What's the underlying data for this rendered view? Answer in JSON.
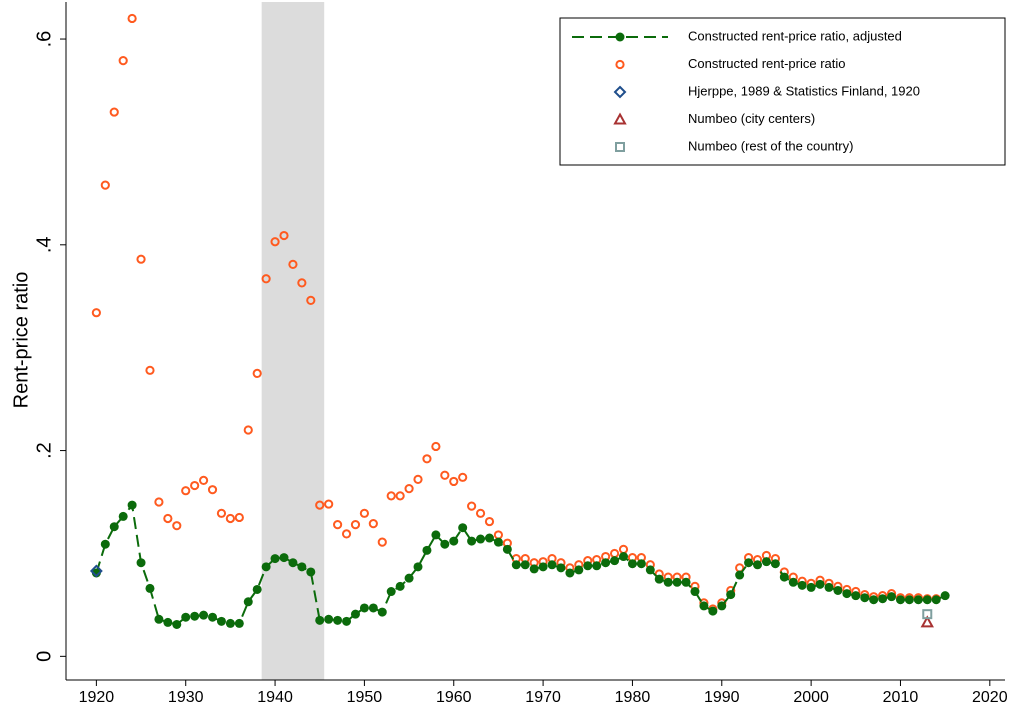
{
  "chart_data": {
    "type": "scatter",
    "y_label": "Rent-price ratio",
    "x": [
      1920,
      1921,
      1922,
      1923,
      1924,
      1925,
      1926,
      1927,
      1928,
      1929,
      1930,
      1931,
      1932,
      1933,
      1934,
      1935,
      1936,
      1937,
      1938,
      1939,
      1940,
      1941,
      1942,
      1943,
      1944,
      1945,
      1946,
      1947,
      1948,
      1949,
      1950,
      1951,
      1952,
      1953,
      1954,
      1955,
      1956,
      1957,
      1958,
      1959,
      1960,
      1961,
      1962,
      1963,
      1964,
      1965,
      1966,
      1967,
      1968,
      1969,
      1970,
      1971,
      1972,
      1973,
      1974,
      1975,
      1976,
      1977,
      1978,
      1979,
      1980,
      1981,
      1982,
      1983,
      1984,
      1985,
      1986,
      1987,
      1988,
      1989,
      1990,
      1991,
      1992,
      1993,
      1994,
      1995,
      1996,
      1997,
      1998,
      1999,
      2000,
      2001,
      2002,
      2003,
      2004,
      2005,
      2006,
      2007,
      2008,
      2009,
      2010,
      2011,
      2012,
      2013,
      2014,
      2015
    ],
    "xlim": [
      1916.6,
      2021.7
    ],
    "xticks": [
      1920,
      1930,
      1940,
      1950,
      1960,
      1970,
      1980,
      1990,
      2000,
      2010,
      2020
    ],
    "ylim": [
      -0.023,
      0.636
    ],
    "yticks": [
      {
        "value": 0,
        "label": "0"
      },
      {
        "value": 0.2,
        "label": ".2"
      },
      {
        "value": 0.4,
        "label": ".4"
      },
      {
        "value": 0.6,
        "label": ".6"
      }
    ],
    "shaded_range": [
      1938.5,
      1945.5
    ],
    "shade_color": "#dcdcdc",
    "legend": "top-right",
    "series": [
      {
        "name": "Constructed rent-price ratio, adjusted",
        "color": "#0b6b0b",
        "marker": "filled-circle",
        "line": "dashed",
        "values": [
          0.081,
          0.109,
          0.126,
          0.136,
          0.147,
          0.091,
          0.066,
          0.036,
          0.033,
          0.031,
          0.038,
          0.039,
          0.04,
          0.038,
          0.034,
          0.032,
          0.032,
          0.053,
          0.065,
          0.087,
          0.095,
          0.096,
          0.091,
          0.087,
          0.082,
          0.035,
          0.036,
          0.035,
          0.034,
          0.041,
          0.047,
          0.047,
          0.043,
          0.063,
          0.068,
          0.076,
          0.087,
          0.103,
          0.118,
          0.109,
          0.112,
          0.125,
          0.112,
          0.114,
          0.115,
          0.111,
          0.104,
          0.089,
          0.089,
          0.085,
          0.087,
          0.089,
          0.086,
          0.081,
          0.084,
          0.088,
          0.088,
          0.091,
          0.093,
          0.097,
          0.09,
          0.09,
          0.084,
          0.075,
          0.072,
          0.072,
          0.072,
          0.063,
          0.049,
          0.044,
          0.049,
          0.06,
          0.079,
          0.091,
          0.089,
          0.092,
          0.09,
          0.077,
          0.072,
          0.069,
          0.067,
          0.07,
          0.067,
          0.064,
          0.061,
          0.059,
          0.057,
          0.055,
          0.056,
          0.058,
          0.055,
          0.055,
          0.055,
          0.055,
          0.055,
          0.059
        ]
      },
      {
        "name": "Constructed rent-price ratio",
        "color": "#ff5a1f",
        "marker": "hollow-circle",
        "values": [
          0.334,
          0.458,
          0.529,
          0.579,
          0.62,
          0.386,
          0.278,
          0.15,
          0.134,
          0.127,
          0.161,
          0.166,
          0.171,
          0.162,
          0.139,
          0.134,
          0.135,
          0.22,
          0.275,
          0.367,
          0.403,
          0.409,
          0.381,
          0.363,
          0.346,
          0.147,
          0.148,
          0.128,
          0.119,
          0.128,
          0.139,
          0.129,
          0.111,
          0.156,
          0.156,
          0.163,
          0.172,
          0.192,
          0.204,
          0.176,
          0.17,
          0.174,
          0.146,
          0.139,
          0.131,
          0.118,
          0.11,
          0.095,
          0.095,
          0.091,
          0.092,
          0.095,
          0.091,
          0.086,
          0.089,
          0.093,
          0.094,
          0.097,
          0.1,
          0.104,
          0.096,
          0.096,
          0.089,
          0.08,
          0.077,
          0.077,
          0.077,
          0.068,
          0.052,
          0.046,
          0.052,
          0.064,
          0.086,
          0.096,
          0.094,
          0.098,
          0.095,
          0.082,
          0.077,
          0.073,
          0.071,
          0.074,
          0.071,
          0.068,
          0.065,
          0.063,
          0.06,
          0.058,
          0.059,
          0.061,
          0.057,
          0.057,
          0.057,
          0.056,
          0.056,
          null
        ]
      },
      {
        "name": "Hjerppe, 1989 & Statistics Finland, 1920",
        "color": "#1f4e8c",
        "marker": "hollow-diamond",
        "x": [
          1920
        ],
        "values": [
          0.083
        ]
      },
      {
        "name": "Numbeo (city centers)",
        "color": "#a83232",
        "marker": "hollow-triangle",
        "x": [
          2013
        ],
        "values": [
          0.033
        ]
      },
      {
        "name": "Numbeo (rest of the country)",
        "color": "#7f9f9f",
        "marker": "hollow-square",
        "x": [
          2013
        ],
        "values": [
          0.041
        ]
      }
    ]
  }
}
